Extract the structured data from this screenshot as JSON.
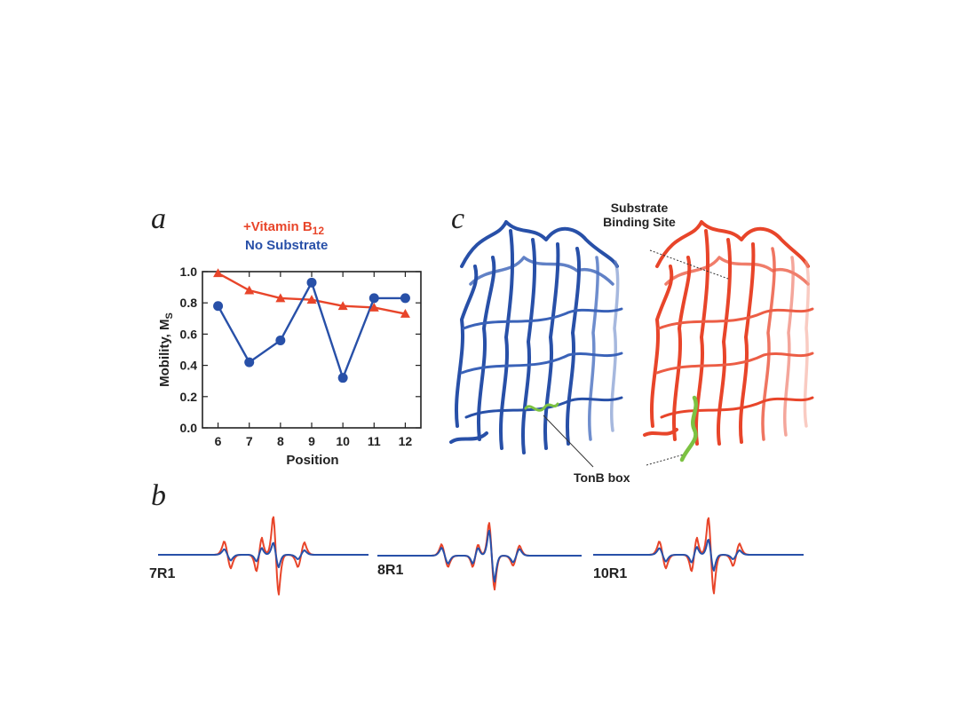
{
  "panels": {
    "a": "a",
    "b": "b",
    "c": "c"
  },
  "legend": {
    "vitamin_label": "+Vitamin B",
    "vitamin_subscript": "12",
    "no_substrate_label": "No Substrate",
    "vitamin_color": "#e8452a",
    "no_substrate_color": "#2850a8"
  },
  "chart_data": {
    "type": "line",
    "xlabel": "Position",
    "ylabel": "Mobility, M",
    "ylabel_subscript": "S",
    "x": [
      6,
      7,
      8,
      9,
      10,
      11,
      12
    ],
    "xlim": [
      5.5,
      12.5
    ],
    "ylim": [
      0.0,
      1.0
    ],
    "yticks": [
      "0.0",
      "0.2",
      "0.4",
      "0.6",
      "0.8",
      "1.0"
    ],
    "xticks": [
      "6",
      "7",
      "8",
      "9",
      "10",
      "11",
      "12"
    ],
    "series": [
      {
        "name": "+Vitamin B12",
        "marker": "triangle",
        "color": "#e8452a",
        "values": [
          0.99,
          0.88,
          0.83,
          0.82,
          0.78,
          0.77,
          0.73
        ]
      },
      {
        "name": "No Substrate",
        "marker": "circle",
        "color": "#2850a8",
        "values": [
          0.78,
          0.42,
          0.56,
          0.93,
          0.32,
          0.83,
          0.83
        ]
      }
    ]
  },
  "structure": {
    "substrate_site_line1": "Substrate",
    "substrate_site_line2": "Binding Site",
    "tonb_label": "TonB box"
  },
  "spectra": [
    {
      "label": "7R1"
    },
    {
      "label": "8R1"
    },
    {
      "label": "10R1"
    }
  ]
}
